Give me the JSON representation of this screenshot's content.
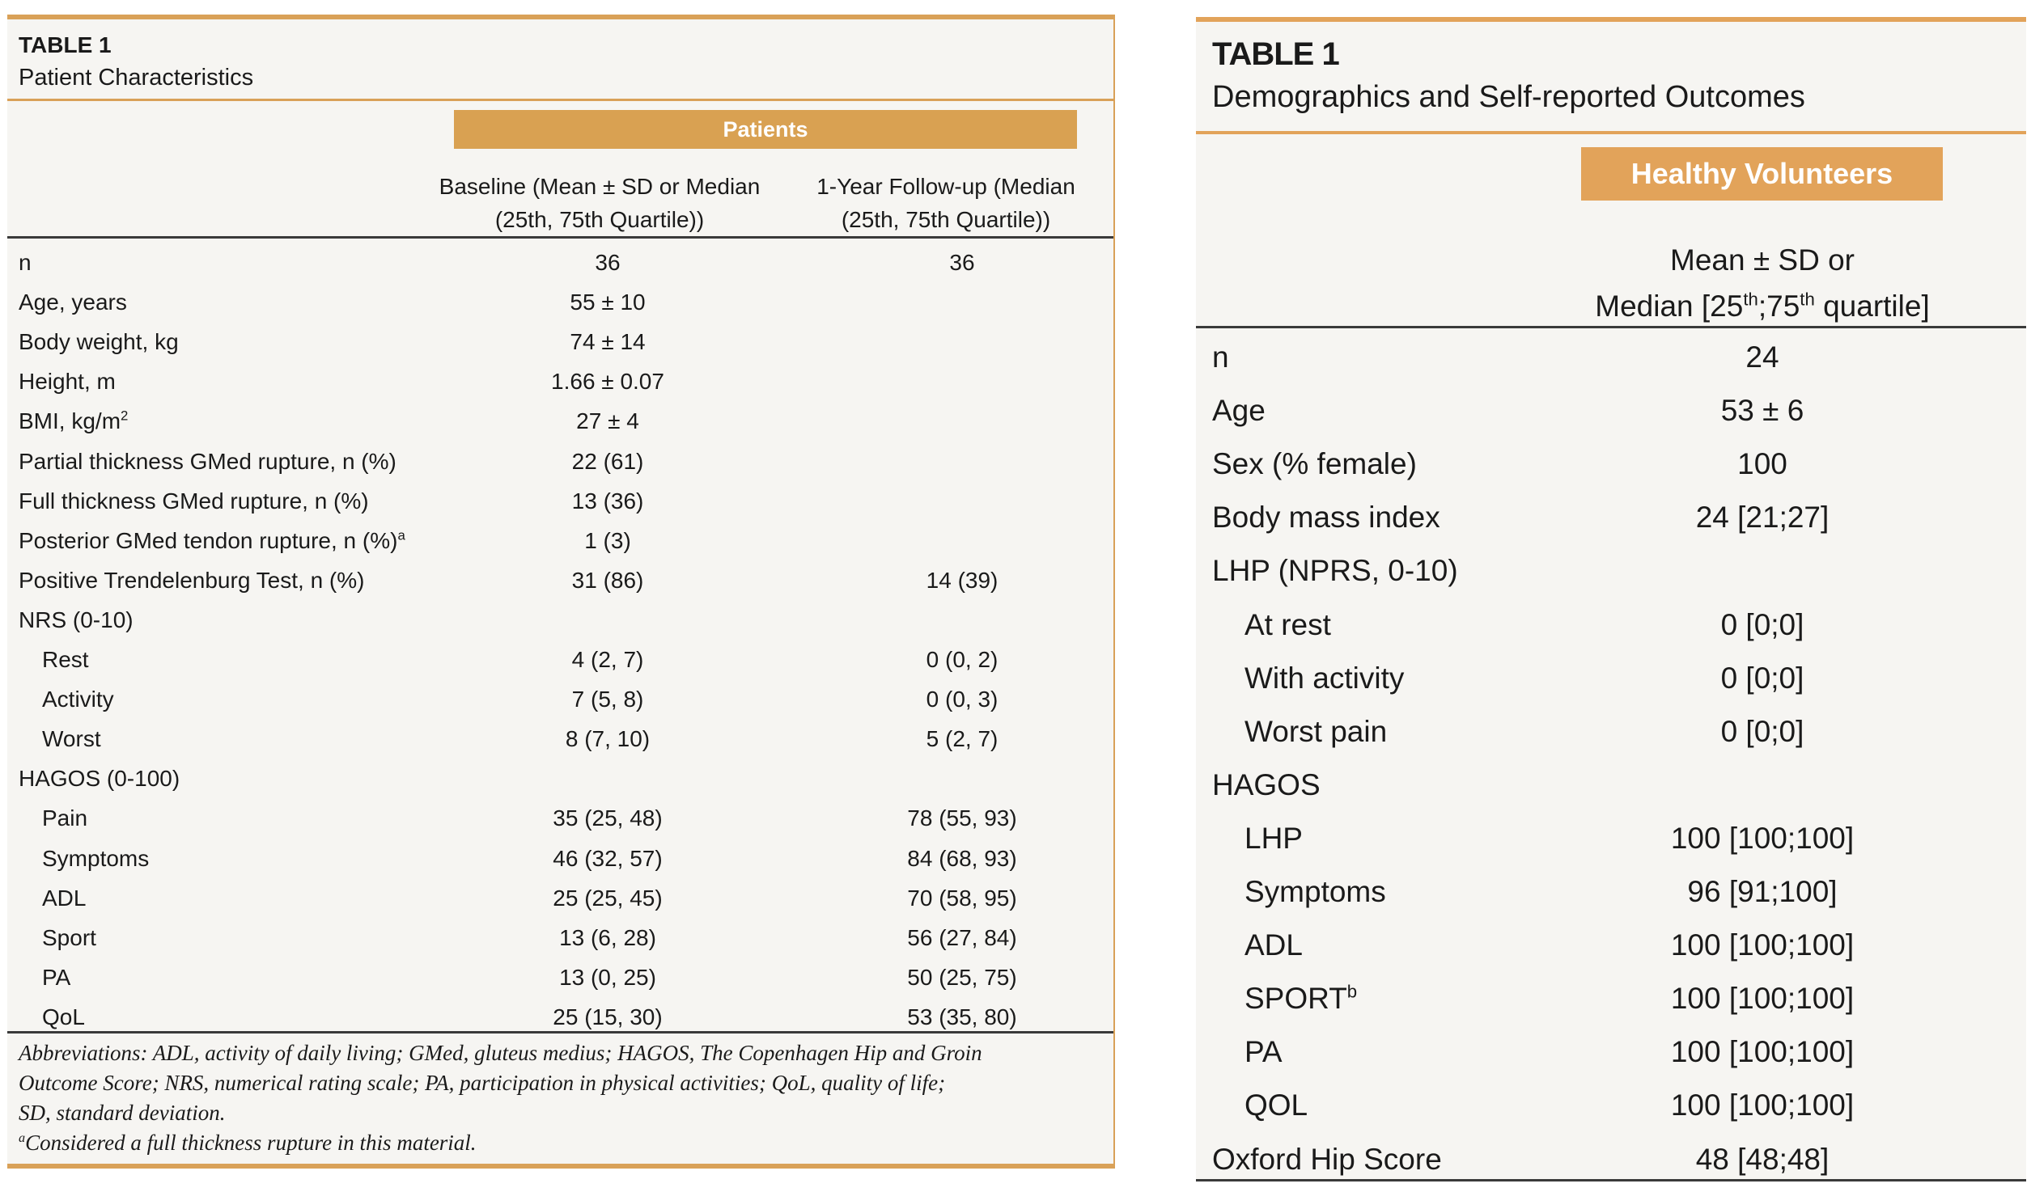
{
  "table1": {
    "label": "TABLE 1",
    "title": "Patient Characteristics",
    "group_header": "Patients",
    "col1_line1": "Baseline (Mean ± SD or Median",
    "col1_line2": "(25th, 75th Quartile))",
    "col2_line1": "1-Year Follow-up (Median",
    "col2_line2": "(25th, 75th Quartile))",
    "rows": [
      {
        "label": "n",
        "baseline": "36",
        "followup": "36",
        "indent": false
      },
      {
        "label": "Age, years",
        "baseline": "55 ± 10",
        "followup": "",
        "indent": false
      },
      {
        "label": "Body weight, kg",
        "baseline": "74 ± 14",
        "followup": "",
        "indent": false
      },
      {
        "label": "Height, m",
        "baseline": "1.66 ± 0.07",
        "followup": "",
        "indent": false
      },
      {
        "label": "BMI, kg/m",
        "label_sup": "2",
        "baseline": "27 ± 4",
        "followup": "",
        "indent": false
      },
      {
        "label": "Partial thickness GMed rupture, n (%)",
        "baseline": "22 (61)",
        "followup": "",
        "indent": false
      },
      {
        "label": "Full thickness GMed rupture, n (%)",
        "baseline": "13 (36)",
        "followup": "",
        "indent": false
      },
      {
        "label": "Posterior GMed tendon rupture, n (%)",
        "label_sup": "a",
        "baseline": "1 (3)",
        "followup": "",
        "indent": false
      },
      {
        "label": "Positive Trendelenburg Test, n (%)",
        "baseline": "31 (86)",
        "followup": "14 (39)",
        "indent": false
      },
      {
        "label": "NRS (0-10)",
        "baseline": "",
        "followup": "",
        "indent": false
      },
      {
        "label": "Rest",
        "baseline": "4 (2, 7)",
        "followup": "0 (0, 2)",
        "indent": true
      },
      {
        "label": "Activity",
        "baseline": "7 (5, 8)",
        "followup": "0 (0, 3)",
        "indent": true
      },
      {
        "label": "Worst",
        "baseline": "8 (7, 10)",
        "followup": "5 (2, 7)",
        "indent": true
      },
      {
        "label": "HAGOS (0-100)",
        "baseline": "",
        "followup": "",
        "indent": false
      },
      {
        "label": "Pain",
        "baseline": "35 (25, 48)",
        "followup": "78 (55, 93)",
        "indent": true
      },
      {
        "label": "Symptoms",
        "baseline": "46 (32, 57)",
        "followup": "84 (68, 93)",
        "indent": true
      },
      {
        "label": "ADL",
        "baseline": "25 (25, 45)",
        "followup": "70 (58, 95)",
        "indent": true
      },
      {
        "label": "Sport",
        "baseline": "13 (6, 28)",
        "followup": "56 (27, 84)",
        "indent": true
      },
      {
        "label": "PA",
        "baseline": "13 (0, 25)",
        "followup": "50 (25, 75)",
        "indent": true
      },
      {
        "label": "QoL",
        "baseline": "25 (15, 30)",
        "followup": "53 (35, 80)",
        "indent": true
      }
    ],
    "abbreviations_line1": "Abbreviations: ADL, activity of daily living; GMed, gluteus medius; HAGOS, The Copenhagen Hip and Groin",
    "abbreviations_line2": "Outcome Score; NRS, numerical rating scale; PA, participation in physical activities; QoL, quality of life;",
    "abbreviations_line3": "SD, standard deviation.",
    "footnote_mark": "a",
    "footnote_text": "Considered a full thickness rupture in this material."
  },
  "table2": {
    "label": "TABLE 1",
    "title": "Demographics and Self-reported Outcomes",
    "group_header": "Healthy Volunteers",
    "col_line1": "Mean ± SD or",
    "col_line2_a": "Median [25",
    "col_line2_sup1": "th",
    "col_line2_b": ";75",
    "col_line2_sup2": "th",
    "col_line2_c": " quartile]",
    "rows": [
      {
        "label": "n",
        "value": "24",
        "indent": false
      },
      {
        "label": "Age",
        "value": "53 ± 6",
        "indent": false
      },
      {
        "label": "Sex (% female)",
        "value": "100",
        "indent": false
      },
      {
        "label": "Body mass index",
        "value": "24 [21;27]",
        "indent": false
      },
      {
        "label": "LHP (NPRS, 0-10)",
        "value": "",
        "indent": false
      },
      {
        "label": "At rest",
        "value": "0 [0;0]",
        "indent": true
      },
      {
        "label": "With activity",
        "value": "0 [0;0]",
        "indent": true
      },
      {
        "label": "Worst pain",
        "value": "0 [0;0]",
        "indent": true
      },
      {
        "label": "HAGOS",
        "value": "",
        "indent": false
      },
      {
        "label": "LHP",
        "value": "100 [100;100]",
        "indent": true
      },
      {
        "label": "Symptoms",
        "value": "96 [91;100]",
        "indent": true
      },
      {
        "label": "ADL",
        "value": "100 [100;100]",
        "indent": true
      },
      {
        "label": "SPORT",
        "label_sup": "b",
        "value": "100 [100;100]",
        "indent": true
      },
      {
        "label": "PA",
        "value": "100 [100;100]",
        "indent": true
      },
      {
        "label": "QOL",
        "value": "100 [100;100]",
        "indent": true
      },
      {
        "label": "Oxford Hip Score",
        "value": "48 [48;48]",
        "indent": false
      }
    ]
  },
  "colors": {
    "accent_left": "#d9a152",
    "accent_right": "#e2a35a",
    "background": "#f6f5f2",
    "rule": "#3a3a3a"
  }
}
